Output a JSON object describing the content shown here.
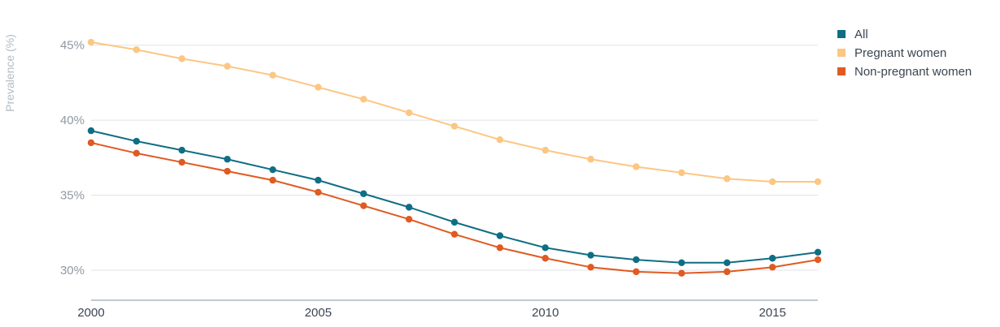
{
  "chart_data": {
    "type": "line",
    "title": "",
    "xlabel": "",
    "ylabel": "Prevalence (%)",
    "x": [
      2000,
      2001,
      2002,
      2003,
      2004,
      2005,
      2006,
      2007,
      2008,
      2009,
      2010,
      2011,
      2012,
      2013,
      2014,
      2015,
      2016
    ],
    "xlim": [
      2000,
      2016
    ],
    "ylim": [
      28,
      46.5
    ],
    "y_ticks": [
      30,
      35,
      40,
      45
    ],
    "y_tick_labels": [
      "30%",
      "35%",
      "40%",
      "45%"
    ],
    "x_ticks": [
      2000,
      2005,
      2010,
      2015
    ],
    "x_tick_labels": [
      "2000",
      "2005",
      "2010",
      "2015"
    ],
    "grid": true,
    "legend_position": "top-right",
    "series": [
      {
        "name": "All",
        "color": "#0f6e84",
        "values": [
          39.3,
          38.6,
          38.0,
          37.4,
          36.7,
          36.0,
          35.1,
          34.2,
          33.2,
          32.3,
          31.5,
          31.0,
          30.7,
          30.5,
          30.5,
          30.8,
          31.2
        ]
      },
      {
        "name": "Pregnant women",
        "color": "#fcc683",
        "values": [
          45.2,
          44.7,
          44.1,
          43.6,
          43.0,
          42.2,
          41.4,
          40.5,
          39.6,
          38.7,
          38.0,
          37.4,
          36.9,
          36.5,
          36.1,
          35.9,
          35.9
        ]
      },
      {
        "name": "Non-pregnant women",
        "color": "#e05a21",
        "values": [
          38.5,
          37.8,
          37.2,
          36.6,
          36.0,
          35.2,
          34.3,
          33.4,
          32.4,
          31.5,
          30.8,
          30.2,
          29.9,
          29.8,
          29.9,
          30.2,
          30.7
        ]
      }
    ]
  }
}
